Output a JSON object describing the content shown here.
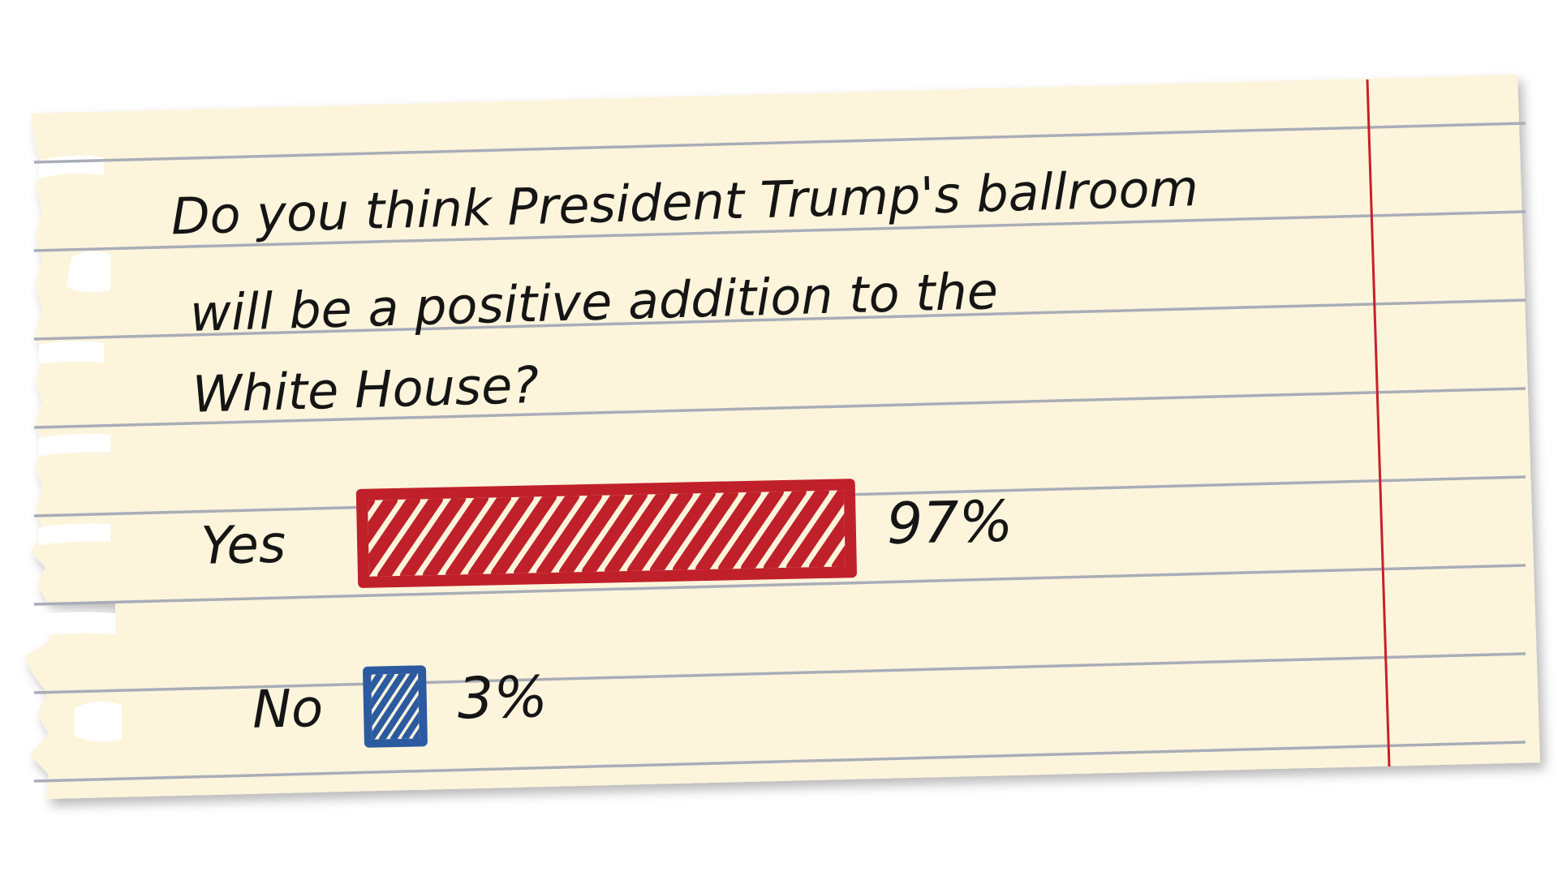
{
  "question": {
    "line1": "Do you think President Trump's ballroom",
    "line2": "will be a positive addition to the",
    "line3": "White House?"
  },
  "colors": {
    "paper": "#fcf5dc",
    "rule": "#a9adb8",
    "margin": "#c8202a",
    "yes": "#c0202a",
    "no": "#2b5aa0",
    "ink": "#151515"
  },
  "chart_data": {
    "type": "bar",
    "orientation": "horizontal",
    "categories": [
      "Yes",
      "No"
    ],
    "values": [
      97,
      3
    ],
    "value_labels": [
      "97%",
      "3%"
    ],
    "unit": "%",
    "series_colors": [
      "#c0202a",
      "#2b5aa0"
    ],
    "xlim": [
      0,
      100
    ],
    "grid": false,
    "legend": "none"
  }
}
